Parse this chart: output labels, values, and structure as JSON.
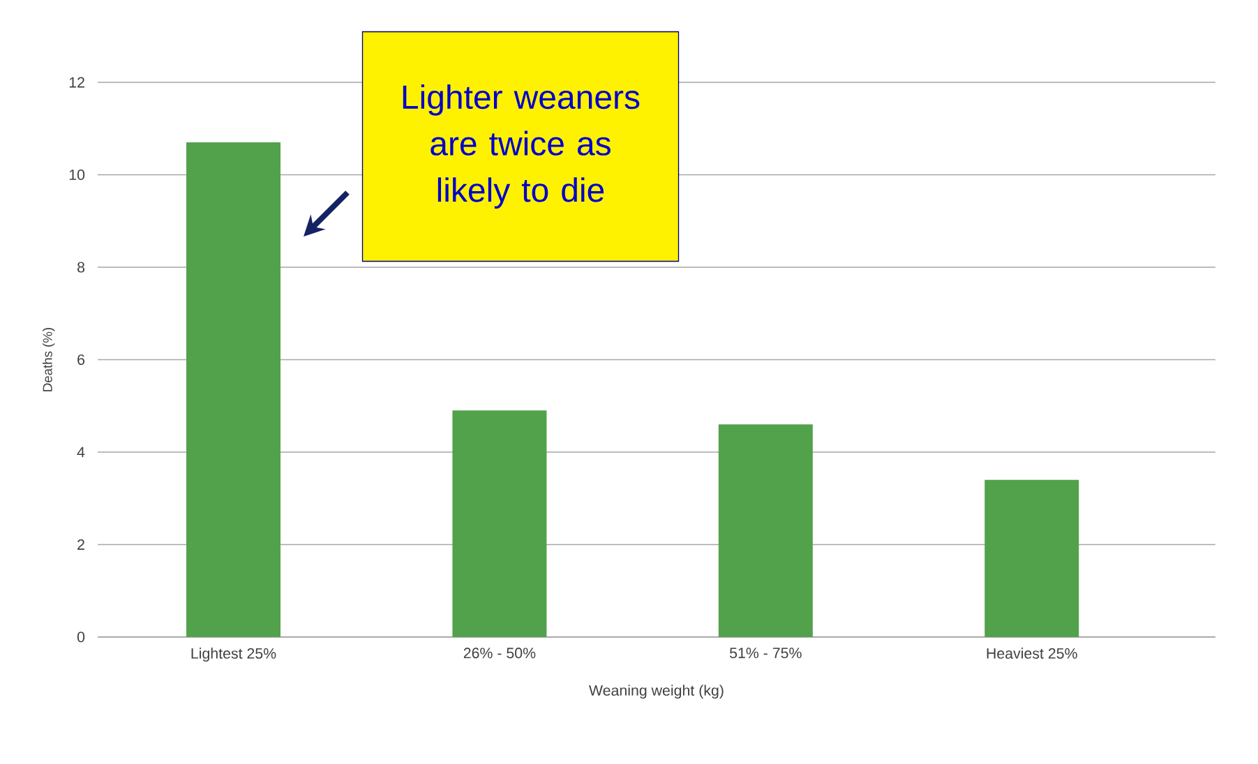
{
  "chart_data": {
    "type": "bar",
    "xlabel": "Weaning weight (kg)",
    "ylabel": "Deaths (%)",
    "categories": [
      "Lightest 25%",
      "26% - 50%",
      "51% - 75%",
      "Heaviest 25%"
    ],
    "values": [
      10.7,
      4.9,
      4.6,
      3.4
    ],
    "color": "#52a24b",
    "ylim": [
      0,
      12
    ],
    "yticks": [
      0,
      2,
      4,
      6,
      8,
      10,
      12
    ],
    "grid": "y",
    "annotations": [
      "Lighter weaners are twice as likely to die"
    ]
  }
}
